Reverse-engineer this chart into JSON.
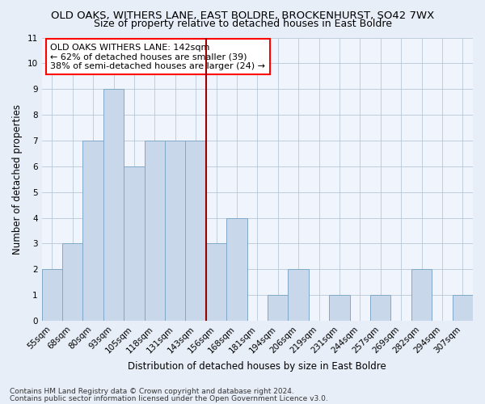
{
  "title": "OLD OAKS, WITHERS LANE, EAST BOLDRE, BROCKENHURST, SO42 7WX",
  "subtitle": "Size of property relative to detached houses in East Boldre",
  "xlabel": "Distribution of detached houses by size in East Boldre",
  "ylabel": "Number of detached properties",
  "bins": [
    "55sqm",
    "68sqm",
    "80sqm",
    "93sqm",
    "105sqm",
    "118sqm",
    "131sqm",
    "143sqm",
    "156sqm",
    "168sqm",
    "181sqm",
    "194sqm",
    "206sqm",
    "219sqm",
    "231sqm",
    "244sqm",
    "257sqm",
    "269sqm",
    "282sqm",
    "294sqm",
    "307sqm"
  ],
  "values": [
    2,
    3,
    7,
    9,
    6,
    7,
    7,
    7,
    3,
    4,
    0,
    1,
    2,
    0,
    1,
    0,
    1,
    0,
    2,
    0,
    1
  ],
  "bar_color": "#c8d8ea",
  "bar_edge_color": "#7fa8c8",
  "vline_bin_index": 7,
  "vline_color": "#990000",
  "ylim": [
    0,
    11
  ],
  "yticks": [
    0,
    1,
    2,
    3,
    4,
    5,
    6,
    7,
    8,
    9,
    10,
    11
  ],
  "annotation_line1": "OLD OAKS WITHERS LANE: 142sqm",
  "annotation_line2": "← 62% of detached houses are smaller (39)",
  "annotation_line3": "38% of semi-detached houses are larger (24) →",
  "footer1": "Contains HM Land Registry data © Crown copyright and database right 2024.",
  "footer2": "Contains public sector information licensed under the Open Government Licence v3.0.",
  "title_fontsize": 9.5,
  "subtitle_fontsize": 9,
  "axis_label_fontsize": 8.5,
  "tick_fontsize": 7.5,
  "annotation_fontsize": 8,
  "footer_fontsize": 6.5,
  "bg_color": "#e8eef8",
  "plot_bg_color": "#f0f4fc"
}
